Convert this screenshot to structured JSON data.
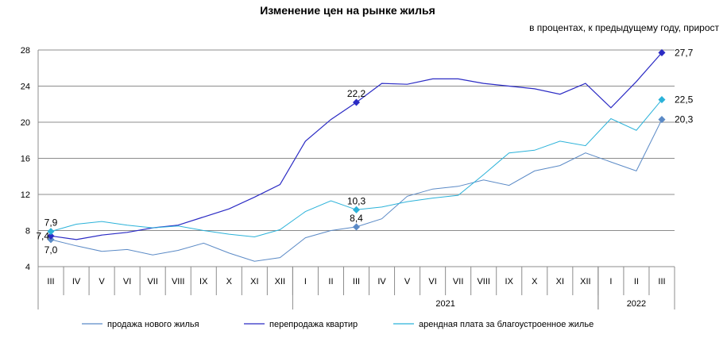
{
  "chart_data": {
    "type": "line",
    "title": "Изменение цен на рынке жилья",
    "subtitle": "в процентах, к предыдущему году, прирост",
    "categories": [
      "III",
      "IV",
      "V",
      "VI",
      "VII",
      "VIII",
      "IX",
      "X",
      "XI",
      "XII",
      "I",
      "II",
      "III",
      "IV",
      "V",
      "VI",
      "VII",
      "VIII",
      "IX",
      "X",
      "XI",
      "XII",
      "I",
      "II",
      "III"
    ],
    "year_labels": [
      {
        "label": "2021",
        "start": 10,
        "end": 21
      },
      {
        "label": "2022",
        "start": 22,
        "end": 24
      }
    ],
    "ylim": [
      4,
      28
    ],
    "yticks": [
      4,
      8,
      12,
      16,
      20,
      24,
      28
    ],
    "grid": true,
    "legend_position": "bottom",
    "series": [
      {
        "name": "продажа нового жилья",
        "color": "#5b8ac6",
        "values": [
          7.0,
          6.3,
          5.7,
          5.9,
          5.3,
          5.8,
          6.6,
          5.5,
          4.6,
          5.0,
          7.2,
          8.0,
          8.4,
          9.3,
          11.8,
          12.6,
          12.9,
          13.6,
          13.0,
          14.6,
          15.2,
          16.6,
          15.6,
          14.6,
          20.3
        ],
        "labels": [
          {
            "index": 0,
            "text": "7,0",
            "pos": "below"
          },
          {
            "index": 12,
            "text": "8,4",
            "pos": "above"
          },
          {
            "index": 24,
            "text": "20,3",
            "pos": "right"
          }
        ]
      },
      {
        "name": "перепродажа квартир",
        "color": "#2b2bc4",
        "values": [
          7.4,
          7.0,
          7.5,
          7.8,
          8.3,
          8.6,
          9.5,
          10.4,
          11.7,
          13.1,
          17.9,
          20.3,
          22.2,
          24.3,
          24.2,
          24.8,
          24.8,
          24.3,
          24.0,
          23.7,
          23.1,
          24.3,
          21.6,
          24.5,
          27.7
        ],
        "labels": [
          {
            "index": 0,
            "text": "7,4",
            "pos": "left"
          },
          {
            "index": 12,
            "text": "22,2",
            "pos": "above"
          },
          {
            "index": 24,
            "text": "27,7",
            "pos": "right"
          }
        ]
      },
      {
        "name": "арендная плата за благоустроенное жилье",
        "color": "#2bb2d9",
        "values": [
          7.9,
          8.7,
          9.0,
          8.6,
          8.3,
          8.5,
          8.0,
          7.6,
          7.3,
          8.1,
          10.1,
          11.3,
          10.3,
          10.6,
          11.2,
          11.6,
          11.9,
          14.2,
          16.6,
          16.9,
          17.9,
          17.4,
          20.4,
          19.1,
          22.5
        ],
        "labels": [
          {
            "index": 0,
            "text": "7,9",
            "pos": "above"
          },
          {
            "index": 12,
            "text": "10,3",
            "pos": "above"
          },
          {
            "index": 24,
            "text": "22,5",
            "pos": "right"
          }
        ]
      }
    ]
  }
}
